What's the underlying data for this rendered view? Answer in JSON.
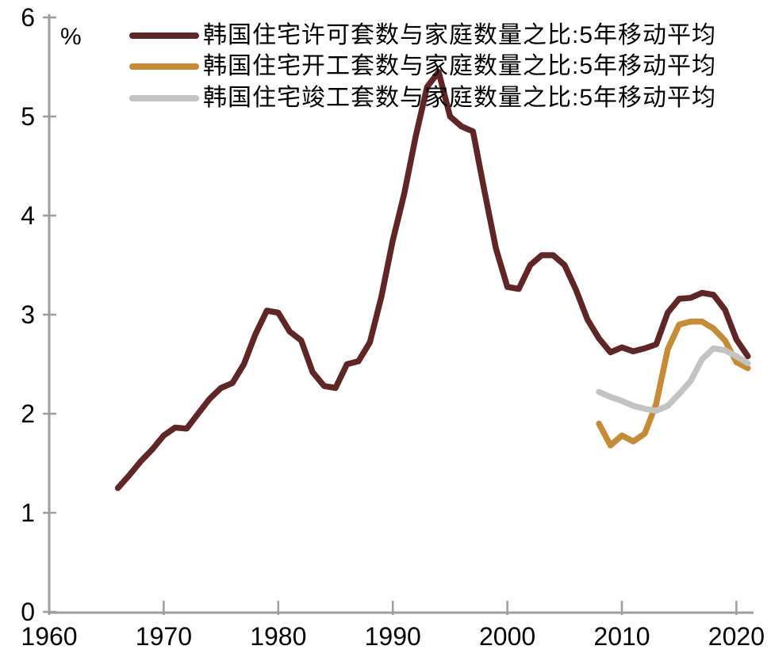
{
  "chart_data": {
    "type": "line",
    "title": "",
    "ylabel": "%",
    "xlabel": "",
    "grid": false,
    "legend_position": "top-left",
    "axis_color": "#9E9E9E",
    "text_color": "#000000",
    "background_color": "#FFFFFF",
    "x_axis": {
      "min": 1960,
      "max": 2021.5,
      "ticks": [
        1960,
        1970,
        1980,
        1990,
        2000,
        2010,
        2020
      ]
    },
    "y_axis": {
      "min": 0,
      "max": 6,
      "ticks": [
        0,
        1,
        2,
        3,
        4,
        5,
        6
      ]
    },
    "series": [
      {
        "key": "permits",
        "name": "韩国住宅许可套数与家庭数量之比:5年移动平均",
        "color": "#602626",
        "line_width": 7.5,
        "years": [
          1966,
          1967,
          1968,
          1969,
          1970,
          1971,
          1972,
          1973,
          1974,
          1975,
          1976,
          1977,
          1978,
          1979,
          1980,
          1981,
          1982,
          1983,
          1984,
          1985,
          1986,
          1987,
          1988,
          1989,
          1990,
          1991,
          1992,
          1993,
          1994,
          1995,
          1996,
          1997,
          1998,
          1999,
          2000,
          2001,
          2002,
          2003,
          2004,
          2005,
          2006,
          2007,
          2008,
          2009,
          2010,
          2011,
          2012,
          2013,
          2014,
          2015,
          2016,
          2017,
          2018,
          2019,
          2020,
          2021
        ],
        "values": [
          1.25,
          1.38,
          1.52,
          1.64,
          1.78,
          1.86,
          1.85,
          2.0,
          2.15,
          2.26,
          2.31,
          2.5,
          2.8,
          3.04,
          3.02,
          2.83,
          2.74,
          2.42,
          2.28,
          2.26,
          2.5,
          2.53,
          2.72,
          3.18,
          3.75,
          4.22,
          4.8,
          5.3,
          5.45,
          5.0,
          4.9,
          4.85,
          4.25,
          3.67,
          3.28,
          3.26,
          3.5,
          3.6,
          3.6,
          3.5,
          3.25,
          2.95,
          2.76,
          2.62,
          2.67,
          2.63,
          2.66,
          2.7,
          3.02,
          3.16,
          3.17,
          3.22,
          3.2,
          3.05,
          2.75,
          2.58
        ]
      },
      {
        "key": "starts",
        "name": "韩国住宅开工套数与家庭数量之比:5年移动平均",
        "color": "#C68C35",
        "line_width": 7.5,
        "years": [
          2008,
          2009,
          2010,
          2011,
          2012,
          2013,
          2014,
          2015,
          2016,
          2017,
          2018,
          2019,
          2020,
          2021
        ],
        "values": [
          1.9,
          1.68,
          1.78,
          1.72,
          1.8,
          2.1,
          2.65,
          2.9,
          2.93,
          2.93,
          2.86,
          2.74,
          2.52,
          2.46
        ]
      },
      {
        "key": "completions",
        "name": "韩国住宅竣工套数与家庭数量之比:5年移动平均",
        "color": "#C3C3C3",
        "line_width": 7.5,
        "years": [
          2008,
          2009,
          2010,
          2011,
          2012,
          2013,
          2014,
          2015,
          2016,
          2017,
          2018,
          2019,
          2020,
          2021
        ],
        "values": [
          2.22,
          2.17,
          2.13,
          2.08,
          2.05,
          2.03,
          2.08,
          2.2,
          2.33,
          2.55,
          2.66,
          2.64,
          2.58,
          2.51
        ]
      }
    ]
  }
}
